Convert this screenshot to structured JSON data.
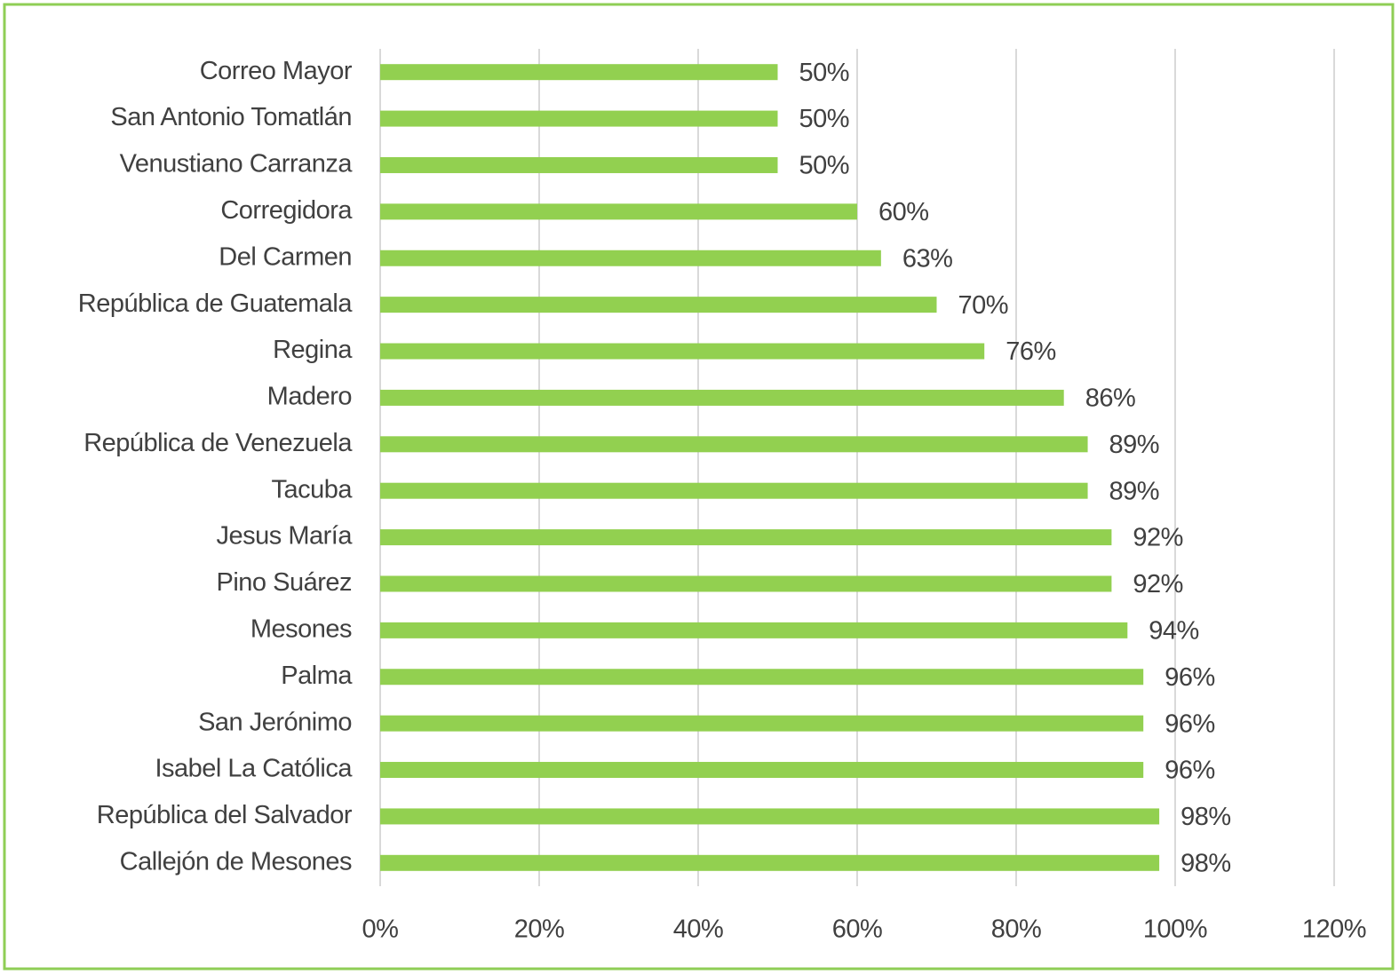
{
  "chart_data": {
    "type": "bar",
    "orientation": "horizontal",
    "categories": [
      "Correo Mayor",
      "San Antonio Tomatlán",
      "Venustiano Carranza",
      "Corregidora",
      "Del Carmen",
      "República de Guatemala",
      "Regina",
      "Madero",
      "República de Venezuela",
      "Tacuba",
      "Jesus María",
      "Pino Suárez",
      "Mesones",
      "Palma",
      "San Jerónimo",
      "Isabel La Católica",
      "República del Salvador",
      "Callejón de Mesones"
    ],
    "values": [
      50,
      50,
      50,
      60,
      63,
      70,
      76,
      86,
      89,
      89,
      92,
      92,
      94,
      96,
      96,
      96,
      98,
      98
    ],
    "value_labels": [
      "50%",
      "50%",
      "50%",
      "60%",
      "63%",
      "70%",
      "76%",
      "86%",
      "89%",
      "89%",
      "92%",
      "92%",
      "94%",
      "96%",
      "96%",
      "96%",
      "98%",
      "98%"
    ],
    "color": "#92d050",
    "xlim": [
      0,
      120
    ],
    "xticks": [
      {
        "value": 0,
        "label": "0%"
      },
      {
        "value": 20,
        "label": "20%"
      },
      {
        "value": 40,
        "label": "40%"
      },
      {
        "value": 60,
        "label": "60%"
      },
      {
        "value": 80,
        "label": "80%"
      },
      {
        "value": 100,
        "label": "100%"
      },
      {
        "value": 120,
        "label": "120%"
      }
    ],
    "grid": true
  }
}
